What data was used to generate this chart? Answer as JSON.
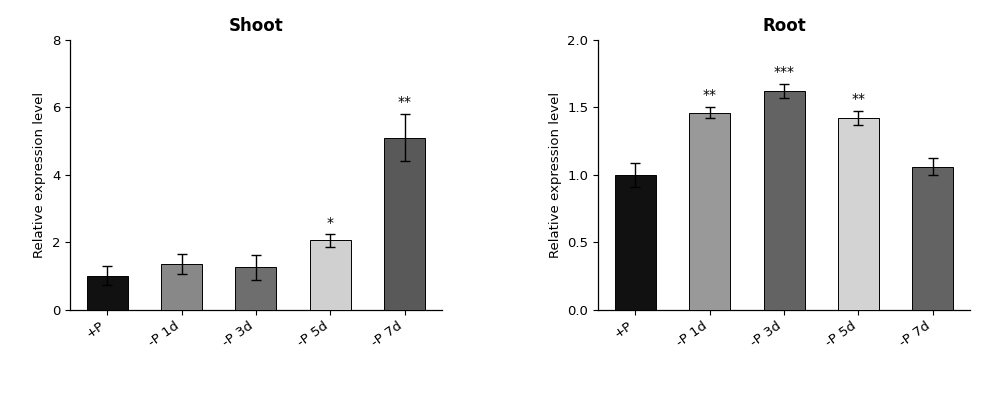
{
  "shoot": {
    "title": "Shoot",
    "categories": [
      "+P",
      "-P 1d",
      "-P 3d",
      "-P 5d",
      "-P 7d"
    ],
    "values": [
      1.0,
      1.35,
      1.25,
      2.05,
      5.1
    ],
    "errors": [
      0.28,
      0.3,
      0.38,
      0.18,
      0.7
    ],
    "colors": [
      "#111111",
      "#888888",
      "#6e6e6e",
      "#d0d0d0",
      "#595959"
    ],
    "significance": [
      "",
      "",
      "",
      "*",
      "**"
    ],
    "ylabel": "Relative expression level",
    "ylim": [
      0,
      8
    ],
    "yticks": [
      0,
      2,
      4,
      6,
      8
    ]
  },
  "root": {
    "title": "Root",
    "categories": [
      "+P",
      "-P 1d",
      "-P 3d",
      "-P 5d",
      "-P 7d"
    ],
    "values": [
      1.0,
      1.46,
      1.62,
      1.42,
      1.06
    ],
    "errors": [
      0.09,
      0.04,
      0.05,
      0.055,
      0.06
    ],
    "colors": [
      "#111111",
      "#999999",
      "#636363",
      "#d3d3d3",
      "#636363"
    ],
    "significance": [
      "",
      "**",
      "***",
      "**",
      ""
    ],
    "ylabel": "Relative expression level",
    "ylim": [
      0,
      2.0
    ],
    "yticks": [
      0.0,
      0.5,
      1.0,
      1.5,
      2.0
    ]
  },
  "fig_width": 10.0,
  "fig_height": 3.97,
  "dpi": 100
}
